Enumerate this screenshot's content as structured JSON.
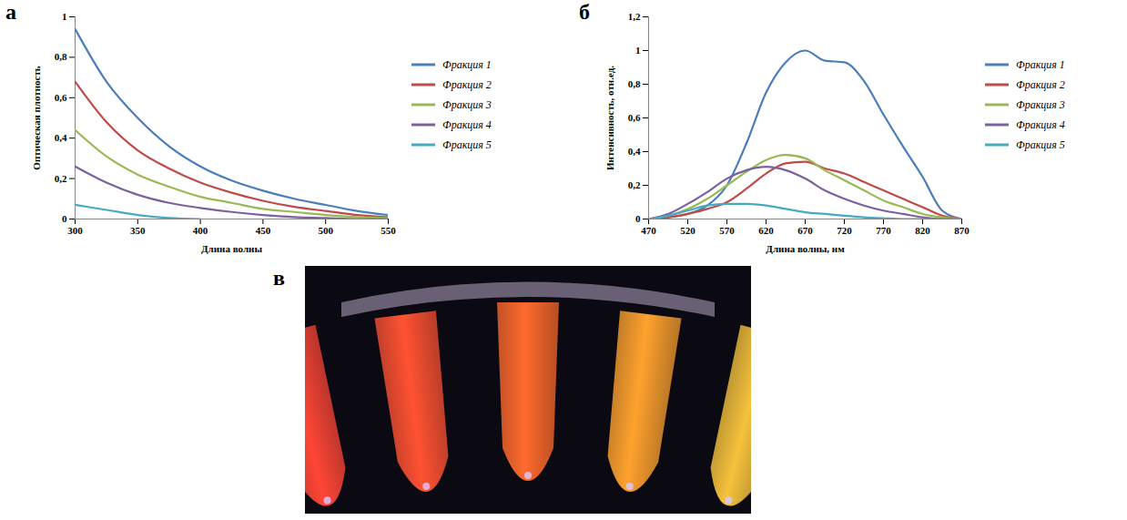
{
  "chart_data": [
    {
      "type": "line",
      "panel": "а",
      "x_label": "Длина волны",
      "y_label": "Оптическая плотность",
      "x": [
        300,
        325,
        350,
        375,
        400,
        425,
        450,
        475,
        500,
        525,
        550
      ],
      "series": [
        {
          "name": "Фракция 1",
          "color": "#4a7ebb",
          "values": [
            0.94,
            0.68,
            0.5,
            0.36,
            0.26,
            0.19,
            0.14,
            0.1,
            0.07,
            0.04,
            0.02
          ]
        },
        {
          "name": "Фракция 2",
          "color": "#be4b48",
          "values": [
            0.68,
            0.48,
            0.34,
            0.25,
            0.18,
            0.13,
            0.09,
            0.06,
            0.04,
            0.02,
            0.01
          ]
        },
        {
          "name": "Фракция 3",
          "color": "#98b954",
          "values": [
            0.44,
            0.31,
            0.22,
            0.16,
            0.11,
            0.08,
            0.05,
            0.035,
            0.02,
            0.01,
            0.005
          ]
        },
        {
          "name": "Фракция 4",
          "color": "#7d60a0",
          "values": [
            0.26,
            0.18,
            0.12,
            0.08,
            0.055,
            0.035,
            0.02,
            0.01,
            0.005,
            0,
            0
          ]
        },
        {
          "name": "Фракция 5",
          "color": "#46aac5",
          "values": [
            0.07,
            0.045,
            0.02,
            0.005,
            0,
            null,
            null,
            null,
            null,
            null,
            null
          ]
        }
      ],
      "xlim": [
        300,
        550
      ],
      "xticks": [
        300,
        350,
        400,
        450,
        500,
        550
      ],
      "ylim": [
        0,
        1
      ],
      "yticks": [
        0,
        {
          "value": 0.2,
          "label": "0,2"
        },
        {
          "value": 0.4,
          "label": "0,4"
        },
        {
          "value": 0.6,
          "label": "0,6"
        },
        {
          "value": 0.8,
          "label": "0,8"
        },
        1
      ],
      "grid": false,
      "legend": "right"
    },
    {
      "type": "line",
      "panel": "б",
      "x_label": "Длина волны, нм",
      "y_label": "Интенсивность, отн.ед.",
      "x": [
        470,
        495,
        520,
        545,
        570,
        595,
        620,
        645,
        670,
        695,
        720,
        745,
        770,
        795,
        820,
        845,
        870
      ],
      "series": [
        {
          "name": "Фракция 1",
          "color": "#4a7ebb",
          "values": [
            0,
            0.01,
            0.03,
            0.08,
            0.2,
            0.45,
            0.75,
            0.93,
            1.0,
            0.94,
            0.93,
            0.82,
            0.62,
            0.43,
            0.25,
            0.05,
            0
          ]
        },
        {
          "name": "Фракция 2",
          "color": "#be4b48",
          "values": [
            0,
            0.01,
            0.03,
            0.06,
            0.1,
            0.18,
            0.27,
            0.33,
            0.34,
            0.3,
            0.27,
            0.22,
            0.17,
            0.12,
            0.07,
            0.02,
            0
          ]
        },
        {
          "name": "Фракция 3",
          "color": "#98b954",
          "values": [
            0,
            0.02,
            0.06,
            0.12,
            0.2,
            0.28,
            0.35,
            0.38,
            0.36,
            0.29,
            0.23,
            0.17,
            0.11,
            0.07,
            0.03,
            0.01,
            0
          ]
        },
        {
          "name": "Фракция 4",
          "color": "#7d60a0",
          "values": [
            0,
            0.03,
            0.09,
            0.16,
            0.24,
            0.29,
            0.31,
            0.29,
            0.24,
            0.17,
            0.12,
            0.08,
            0.05,
            0.03,
            0.01,
            0,
            0
          ]
        },
        {
          "name": "Фракция 5",
          "color": "#46aac5",
          "values": [
            0,
            0.02,
            0.05,
            0.08,
            0.09,
            0.09,
            0.08,
            0.06,
            0.04,
            0.03,
            0.02,
            0.01,
            0.005,
            0,
            0,
            0,
            0
          ]
        }
      ],
      "xlim": [
        470,
        870
      ],
      "xticks": [
        470,
        520,
        570,
        620,
        670,
        720,
        770,
        820,
        870
      ],
      "ylim": [
        0,
        1.2
      ],
      "yticks": [
        0,
        {
          "value": 0.2,
          "label": "0,2"
        },
        {
          "value": 0.4,
          "label": "0,4"
        },
        {
          "value": 0.6,
          "label": "0,6"
        },
        {
          "value": 0.8,
          "label": "0,8"
        },
        1,
        {
          "value": 1.2,
          "label": "1,2"
        }
      ],
      "grid": false,
      "legend": "right"
    }
  ],
  "photo": {
    "panel": "в"
  }
}
